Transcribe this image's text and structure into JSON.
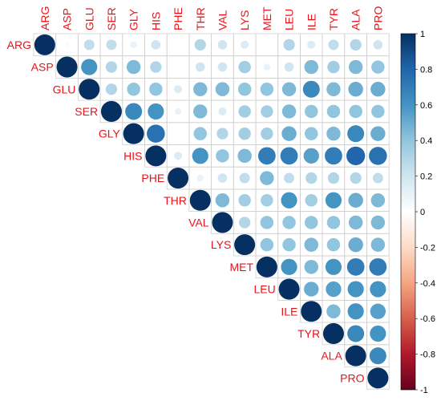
{
  "chart_data": {
    "type": "heatmap",
    "style": "corrplot-circle-upper",
    "variables": [
      "ARG",
      "ASP",
      "GLU",
      "SER",
      "GLY",
      "HIS",
      "PHE",
      "THR",
      "VAL",
      "LYS",
      "MET",
      "LEU",
      "ILE",
      "TYR",
      "ALA",
      "PRO"
    ],
    "matrix": [
      [
        1,
        0.03,
        0.25,
        0.25,
        0.1,
        0.2,
        0,
        0.3,
        0.2,
        0.15,
        0,
        0.3,
        0.15,
        0.25,
        0.3,
        0.2
      ],
      [
        0.03,
        1,
        0.6,
        0.3,
        0.45,
        0.3,
        0,
        0.2,
        0.2,
        0.35,
        0.1,
        0.2,
        0.45,
        0.35,
        0.45,
        0.4
      ],
      [
        0.25,
        0.6,
        1,
        0.3,
        0.4,
        0.4,
        0.15,
        0.45,
        0.45,
        0.4,
        0.4,
        0.45,
        0.65,
        0.45,
        0.5,
        0.5
      ],
      [
        0.25,
        0.3,
        0.3,
        1,
        0.65,
        0.6,
        0.1,
        0.45,
        0.15,
        0.35,
        0.35,
        0.45,
        0.4,
        0.4,
        0.4,
        0.4
      ],
      [
        0.1,
        0.45,
        0.4,
        0.65,
        1,
        0.75,
        0,
        0.4,
        0.3,
        0.35,
        0.35,
        0.5,
        0.4,
        0.45,
        0.65,
        0.5
      ],
      [
        0.2,
        0.3,
        0.4,
        0.6,
        0.75,
        1,
        0.15,
        0.6,
        0.4,
        0.45,
        0.7,
        0.7,
        0.55,
        0.7,
        0.8,
        0.75
      ],
      [
        0,
        0,
        0.15,
        0.1,
        0,
        0.15,
        1,
        0.1,
        0.2,
        0.25,
        0.45,
        0.25,
        0.3,
        0.3,
        0.3,
        0.25
      ],
      [
        0.3,
        0.2,
        0.45,
        0.45,
        0.4,
        0.6,
        0.1,
        1,
        0.45,
        0.35,
        0.35,
        0.6,
        0.35,
        0.6,
        0.5,
        0.45
      ],
      [
        0.2,
        0.2,
        0.45,
        0.15,
        0.3,
        0.4,
        0.2,
        0.45,
        1,
        0.3,
        0.4,
        0.4,
        0.4,
        0.4,
        0.45,
        0.45
      ],
      [
        0.15,
        0.35,
        0.4,
        0.35,
        0.35,
        0.45,
        0.25,
        0.35,
        0.3,
        1,
        0.4,
        0.4,
        0.45,
        0.4,
        0.5,
        0.45
      ],
      [
        0,
        0.1,
        0.4,
        0.35,
        0.35,
        0.7,
        0.45,
        0.35,
        0.4,
        0.4,
        1,
        0.6,
        0.45,
        0.6,
        0.7,
        0.7
      ],
      [
        0.3,
        0.2,
        0.45,
        0.45,
        0.5,
        0.7,
        0.25,
        0.6,
        0.4,
        0.4,
        0.6,
        1,
        0.5,
        0.55,
        0.6,
        0.6
      ],
      [
        0.15,
        0.45,
        0.65,
        0.4,
        0.4,
        0.55,
        0.3,
        0.35,
        0.4,
        0.45,
        0.45,
        0.5,
        1,
        0.45,
        0.6,
        0.55
      ],
      [
        0.25,
        0.35,
        0.45,
        0.4,
        0.45,
        0.7,
        0.3,
        0.6,
        0.4,
        0.4,
        0.6,
        0.55,
        0.45,
        1,
        0.65,
        0.6
      ],
      [
        0.3,
        0.45,
        0.5,
        0.4,
        0.65,
        0.8,
        0.3,
        0.5,
        0.45,
        0.5,
        0.7,
        0.6,
        0.6,
        0.65,
        1,
        0.65
      ],
      [
        0.2,
        0.4,
        0.5,
        0.4,
        0.5,
        0.75,
        0.25,
        0.45,
        0.45,
        0.45,
        0.7,
        0.6,
        0.55,
        0.6,
        0.65,
        1
      ]
    ],
    "colorbar": {
      "range": [
        -1,
        1
      ],
      "ticks": [
        "1",
        "0.8",
        "0.6",
        "0.4",
        "0.2",
        "0",
        "-0.2",
        "-0.4",
        "-0.6",
        "-0.8",
        "-1"
      ]
    },
    "colors": {
      "label": "#e8141b",
      "negative_end": "#67001f",
      "neutral": "#ffffff",
      "positive_end": "#053061",
      "grid": "#cfcfcf"
    },
    "title": "",
    "grid": true
  }
}
